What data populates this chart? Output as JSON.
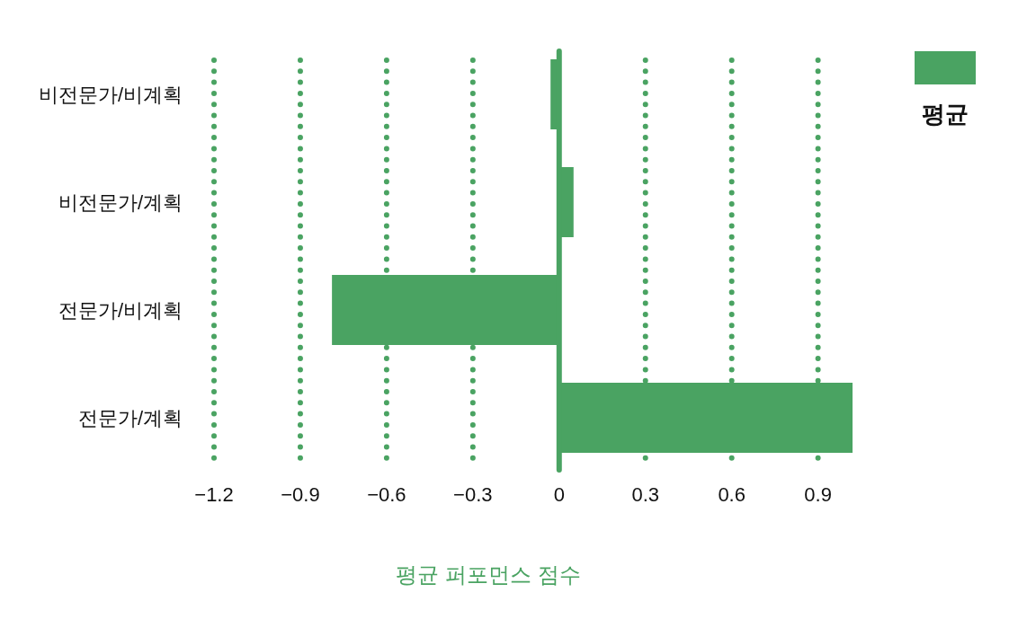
{
  "chart_data": {
    "type": "bar",
    "orientation": "horizontal",
    "categories": [
      "비전문가/비계획",
      "비전문가/계획",
      "전문가/비계획",
      "전문가/계획"
    ],
    "series": [
      {
        "name": "평균",
        "color": "#4aa362",
        "values": [
          -0.03,
          0.05,
          -0.79,
          1.02
        ]
      }
    ],
    "xlabel": "평균 퍼포먼스 점수",
    "xlim": [
      -1.2,
      1.02
    ],
    "ref_lines": [
      {
        "axis": "x",
        "value": 0,
        "color": "#4aa362"
      }
    ],
    "xticks": [
      {
        "value": -1.2,
        "label": "−1.2"
      },
      {
        "value": -0.9,
        "label": "−0.9"
      },
      {
        "value": -0.6,
        "label": "−0.6"
      },
      {
        "value": -0.3,
        "label": "−0.3"
      },
      0,
      0.3,
      0.6,
      0.9
    ],
    "grid": "x",
    "legend": "top right"
  }
}
